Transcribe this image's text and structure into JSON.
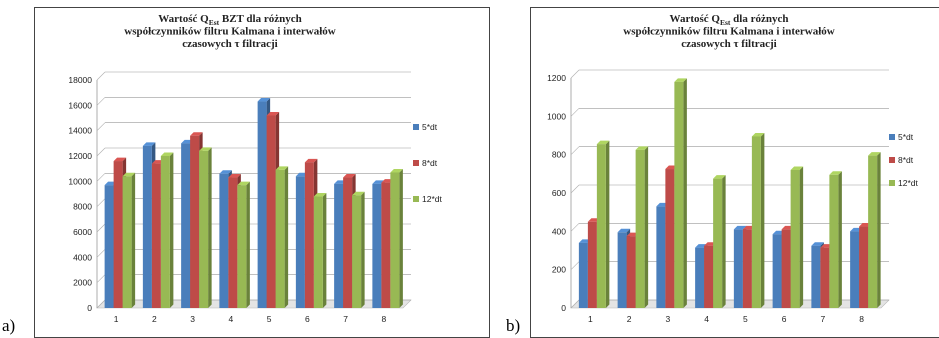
{
  "panel_labels": [
    "a)",
    "b)"
  ],
  "colors": {
    "5*dt": "#4a7ebb",
    "8*dt": "#be4b48",
    "12*dt": "#98b954"
  },
  "chart_data": [
    {
      "type": "bar",
      "title_lines": [
        [
          {
            "t": "Wartość Q"
          },
          {
            "t": "Est",
            "sub": true
          },
          {
            "t": "  BZT dla różnych"
          }
        ],
        [
          {
            "t": "współczynników filtru Kalmana i  interwałów"
          }
        ],
        [
          {
            "t": "czasowych τ filtracji"
          }
        ]
      ],
      "categories": [
        "1",
        "2",
        "3",
        "4",
        "5",
        "6",
        "7",
        "8"
      ],
      "ylim": [
        0,
        18000
      ],
      "yticks": [
        0,
        2000,
        4000,
        6000,
        8000,
        10000,
        12000,
        14000,
        16000,
        18000
      ],
      "series": [
        {
          "name": "5*dt",
          "values": [
            9700,
            12800,
            13000,
            10600,
            16300,
            10400,
            9800,
            9800
          ]
        },
        {
          "name": "8*dt",
          "values": [
            11600,
            11400,
            13600,
            10300,
            15200,
            11500,
            10300,
            9900
          ]
        },
        {
          "name": "12*dt",
          "values": [
            10400,
            12000,
            12400,
            9700,
            10900,
            8800,
            8900,
            10700
          ]
        }
      ],
      "legend": "right",
      "grid": true
    },
    {
      "type": "bar",
      "title_lines": [
        [
          {
            "t": "Wartość Q"
          },
          {
            "t": "Est",
            "sub": true
          },
          {
            "t": "  dla różnych"
          }
        ],
        [
          {
            "t": "współczynników filtru Kalmana i  interwałów"
          }
        ],
        [
          {
            "t": "czasowych τ filtracji"
          }
        ]
      ],
      "categories": [
        "1",
        "2",
        "3",
        "4",
        "5",
        "6",
        "7",
        "8"
      ],
      "ylim": [
        0,
        1200
      ],
      "yticks": [
        0,
        200,
        400,
        600,
        800,
        1000,
        1200
      ],
      "series": [
        {
          "name": "5*dt",
          "values": [
            340,
            395,
            530,
            315,
            410,
            385,
            325,
            400
          ]
        },
        {
          "name": "8*dt",
          "values": [
            450,
            375,
            725,
            325,
            410,
            410,
            315,
            425
          ]
        },
        {
          "name": "12*dt",
          "values": [
            855,
            825,
            1180,
            675,
            895,
            720,
            695,
            795
          ]
        }
      ],
      "legend": "right",
      "grid": true
    }
  ]
}
